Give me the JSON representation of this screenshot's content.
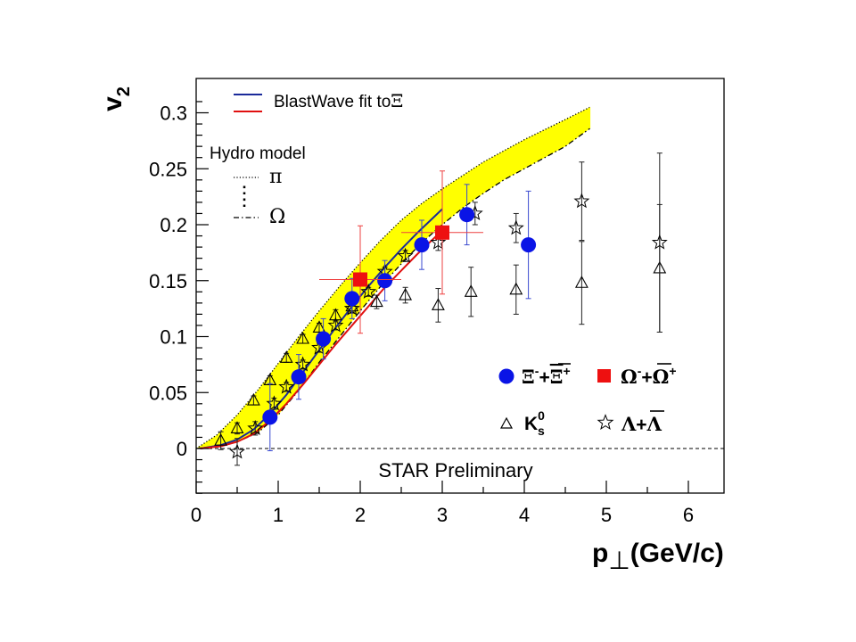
{
  "chart_data": {
    "type": "scatter",
    "title": "",
    "xlabel": "p⊥(GeV/c)",
    "xlabel_main": "p",
    "xlabel_sub": "⊥",
    "xlabel_rest": "(GeV/c)",
    "ylabel_main": "v",
    "ylabel_sub": "2",
    "xlim": [
      0,
      6.4
    ],
    "ylim": [
      -0.04,
      0.31
    ],
    "xticks": [
      "0",
      "1",
      "2",
      "3",
      "4",
      "5",
      "6"
    ],
    "yticks": [
      "0",
      "0.05",
      "0.1",
      "0.15",
      "0.2",
      "0.25",
      "0.3"
    ],
    "annotation": "STAR Preliminary",
    "colors": {
      "xi": "#0a14e6",
      "omega": "#ee1010",
      "band": "#ffff00",
      "xi_err": "#3a4ad0",
      "omega_err": "#ee4040"
    },
    "legend_top": {
      "blastwave_label": "BlastWave fit to",
      "blastwave_symbol": "Ξ",
      "hydro_label": "Hydro model",
      "hydro_pi": "π",
      "hydro_omega": "Ω",
      "hydro_dots": ":"
    },
    "legend_bottom": {
      "xi": {
        "base": "Ξ",
        "sup1": "-",
        "plus": "+",
        "bar": "Ξ",
        "sup2": "+"
      },
      "omega": {
        "base": "Ω",
        "sup1": "-",
        "plus": "+",
        "bar": "Ω",
        "sup2": "+"
      },
      "ks": {
        "base": "K",
        "sup": "0",
        "sub": "s"
      },
      "lambda": {
        "base": "Λ",
        "plus": "+",
        "bar": "Λ"
      }
    },
    "series": [
      {
        "name": "Ξ⁻+Ξ̄⁺",
        "marker": "circle",
        "points": [
          {
            "x": 0.9,
            "y": 0.028,
            "yerr": 0.03
          },
          {
            "x": 1.25,
            "y": 0.064,
            "yerr": 0.02
          },
          {
            "x": 1.55,
            "y": 0.098,
            "yerr": 0.018
          },
          {
            "x": 1.9,
            "y": 0.134,
            "yerr": 0.018
          },
          {
            "x": 2.3,
            "y": 0.15,
            "yerr": 0.018
          },
          {
            "x": 2.75,
            "y": 0.182,
            "yerr": 0.022
          },
          {
            "x": 3.3,
            "y": 0.209,
            "yerr": 0.027
          },
          {
            "x": 4.05,
            "y": 0.182,
            "yerr": 0.048
          }
        ]
      },
      {
        "name": "Ω⁻+Ω̄⁺",
        "marker": "square",
        "points": [
          {
            "x": 2.0,
            "y": 0.151,
            "yerr": 0.048,
            "xerr": 0.5
          },
          {
            "x": 3.0,
            "y": 0.193,
            "yerr": 0.055,
            "xerr": 0.5
          }
        ]
      },
      {
        "name": "K⁰s",
        "marker": "triangle",
        "points": [
          {
            "x": 0.3,
            "y": 0.007,
            "yerr": 0.008
          },
          {
            "x": 0.5,
            "y": 0.018,
            "yerr": 0.005
          },
          {
            "x": 0.7,
            "y": 0.043,
            "yerr": 0.004
          },
          {
            "x": 0.9,
            "y": 0.061,
            "yerr": 0.004
          },
          {
            "x": 1.1,
            "y": 0.081,
            "yerr": 0.004
          },
          {
            "x": 1.3,
            "y": 0.098,
            "yerr": 0.004
          },
          {
            "x": 1.5,
            "y": 0.108,
            "yerr": 0.004
          },
          {
            "x": 1.7,
            "y": 0.119,
            "yerr": 0.005
          },
          {
            "x": 1.9,
            "y": 0.127,
            "yerr": 0.005
          },
          {
            "x": 2.2,
            "y": 0.131,
            "yerr": 0.006
          },
          {
            "x": 2.55,
            "y": 0.137,
            "yerr": 0.007
          },
          {
            "x": 2.95,
            "y": 0.128,
            "yerr": 0.015
          },
          {
            "x": 3.35,
            "y": 0.14,
            "yerr": 0.022
          },
          {
            "x": 3.9,
            "y": 0.142,
            "yerr": 0.022
          },
          {
            "x": 4.7,
            "y": 0.148,
            "yerr": 0.037
          },
          {
            "x": 5.65,
            "y": 0.161,
            "yerr": 0.057
          }
        ]
      },
      {
        "name": "Λ+Λ̄",
        "marker": "star",
        "points": [
          {
            "x": 0.5,
            "y": -0.003,
            "yerr": 0.012
          },
          {
            "x": 0.72,
            "y": 0.018,
            "yerr": 0.006
          },
          {
            "x": 0.95,
            "y": 0.04,
            "yerr": 0.005
          },
          {
            "x": 1.1,
            "y": 0.055,
            "yerr": 0.004
          },
          {
            "x": 1.3,
            "y": 0.075,
            "yerr": 0.004
          },
          {
            "x": 1.5,
            "y": 0.09,
            "yerr": 0.004
          },
          {
            "x": 1.7,
            "y": 0.11,
            "yerr": 0.004
          },
          {
            "x": 1.9,
            "y": 0.125,
            "yerr": 0.004
          },
          {
            "x": 2.1,
            "y": 0.14,
            "yerr": 0.004
          },
          {
            "x": 2.3,
            "y": 0.158,
            "yerr": 0.004
          },
          {
            "x": 2.55,
            "y": 0.172,
            "yerr": 0.005
          },
          {
            "x": 2.95,
            "y": 0.184,
            "yerr": 0.007
          },
          {
            "x": 3.4,
            "y": 0.21,
            "yerr": 0.01
          },
          {
            "x": 3.9,
            "y": 0.197,
            "yerr": 0.013
          },
          {
            "x": 4.7,
            "y": 0.221,
            "yerr": 0.035
          },
          {
            "x": 5.65,
            "y": 0.184,
            "yerr": 0.08
          }
        ]
      }
    ],
    "fits": [
      {
        "name": "BlastWave Ξ (blue)",
        "color": "#1a2a9a",
        "x": [
          0.05,
          0.3,
          0.5,
          0.7,
          0.9,
          1.1,
          1.3,
          1.5,
          1.7,
          1.9,
          2.1,
          2.3,
          2.5,
          2.7,
          2.9,
          3.0
        ],
        "y": [
          0.0,
          0.003,
          0.008,
          0.017,
          0.031,
          0.048,
          0.068,
          0.088,
          0.108,
          0.127,
          0.145,
          0.162,
          0.178,
          0.193,
          0.207,
          0.214
        ]
      },
      {
        "name": "BlastWave Ξ (red)",
        "color": "#e01010",
        "x": [
          0.05,
          0.3,
          0.5,
          0.7,
          0.9,
          1.1,
          1.3,
          1.5,
          1.7,
          1.9,
          2.1,
          2.3,
          2.5,
          2.7,
          2.9,
          3.0
        ],
        "y": [
          0.0,
          0.002,
          0.006,
          0.013,
          0.025,
          0.04,
          0.057,
          0.075,
          0.093,
          0.11,
          0.127,
          0.144,
          0.159,
          0.174,
          0.188,
          0.195
        ]
      }
    ],
    "band": {
      "name": "Hydro model",
      "upper_pi": {
        "x": [
          0.0,
          0.25,
          0.5,
          0.75,
          1.0,
          1.25,
          1.5,
          1.75,
          2.0,
          2.25,
          2.5,
          2.75,
          3.0,
          3.25,
          3.5,
          3.75,
          4.0,
          4.25,
          4.5,
          4.8
        ],
        "y": [
          0.0,
          0.012,
          0.03,
          0.052,
          0.076,
          0.1,
          0.123,
          0.145,
          0.166,
          0.186,
          0.204,
          0.219,
          0.232,
          0.244,
          0.256,
          0.266,
          0.276,
          0.285,
          0.294,
          0.305
        ]
      },
      "lower_omega": {
        "x": [
          0.0,
          0.25,
          0.5,
          0.75,
          1.0,
          1.25,
          1.5,
          1.75,
          2.0,
          2.25,
          2.5,
          2.75,
          3.0,
          3.25,
          3.5,
          3.75,
          4.0,
          4.25,
          4.5,
          4.8
        ],
        "y": [
          0.0,
          0.002,
          0.006,
          0.014,
          0.03,
          0.052,
          0.077,
          0.1,
          0.123,
          0.145,
          0.165,
          0.184,
          0.2,
          0.215,
          0.228,
          0.24,
          0.25,
          0.26,
          0.27,
          0.286
        ]
      }
    }
  }
}
